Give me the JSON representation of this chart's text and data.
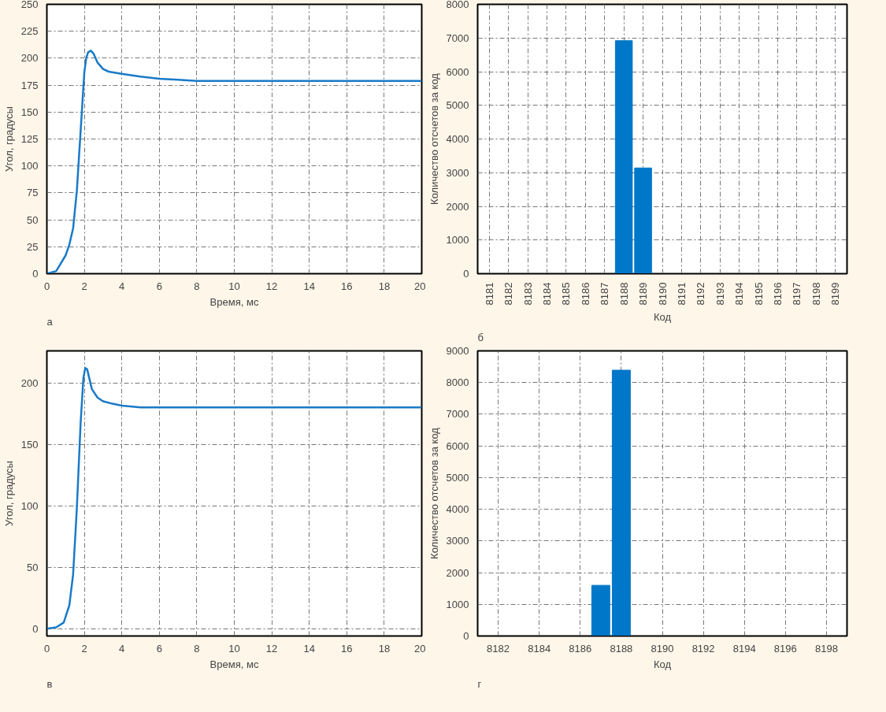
{
  "chart_data": [
    {
      "type": "line",
      "xlabel": "Время, мс",
      "ylabel": "Угол, градусы",
      "annotations": [
        "а"
      ],
      "grid": true,
      "line_style": "solid",
      "xlim": [
        0,
        20
      ],
      "ylim": [
        0,
        250
      ],
      "xticks": [
        0,
        2,
        4,
        6,
        8,
        10,
        12,
        14,
        16,
        18,
        20
      ],
      "yticks": [
        0,
        25,
        50,
        75,
        100,
        125,
        150,
        175,
        200,
        225,
        250
      ],
      "series": [
        {
          "color": "#1a7ac8",
          "x": [
            0,
            0.5,
            1.0,
            1.2,
            1.4,
            1.6,
            1.8,
            2.0,
            2.1,
            2.2,
            2.35,
            2.5,
            2.7,
            3.0,
            3.3,
            4,
            5,
            6,
            7,
            8,
            12,
            20
          ],
          "values": [
            0,
            2.5,
            17,
            27,
            42,
            77,
            132,
            187,
            200,
            205.5,
            207,
            204,
            196,
            190,
            187.5,
            185.5,
            183,
            181,
            180,
            179,
            179,
            179
          ]
        }
      ]
    },
    {
      "type": "bar",
      "xlabel": "Код",
      "ylabel": "Количество отсчетов за код",
      "annotations": [
        "б"
      ],
      "grid": true,
      "ylim": [
        0,
        8000
      ],
      "yticks": [
        0,
        1000,
        2000,
        3000,
        4000,
        5000,
        6000,
        7000,
        8000
      ],
      "categories": [
        "8181",
        "8182",
        "8183",
        "8184",
        "8185",
        "8186",
        "8187",
        "8188",
        "8189",
        "8190",
        "8191",
        "8192",
        "8193",
        "8194",
        "8195",
        "8196",
        "8197",
        "8198",
        "8199"
      ],
      "series": [
        {
          "color": "#0077c8",
          "values": [
            0,
            0,
            0,
            0,
            0,
            0,
            0,
            6920,
            3140,
            0,
            0,
            0,
            0,
            0,
            0,
            0,
            0,
            0,
            0
          ]
        }
      ]
    },
    {
      "type": "line",
      "xlabel": "Время, мс",
      "ylabel": "Угол, градусы",
      "annotations": [
        "в"
      ],
      "grid": true,
      "line_style": "solid",
      "xlim": [
        0,
        20
      ],
      "ylim": [
        -6,
        226
      ],
      "xticks": [
        0,
        2,
        4,
        6,
        8,
        10,
        12,
        14,
        16,
        18,
        20
      ],
      "yticks": [
        0,
        50,
        100,
        150,
        200
      ],
      "series": [
        {
          "color": "#1a7ac8",
          "x": [
            0,
            0.5,
            0.9,
            1.2,
            1.4,
            1.6,
            1.8,
            1.95,
            2.05,
            2.15,
            2.4,
            2.7,
            3.0,
            3.5,
            4,
            5,
            10,
            20
          ],
          "values": [
            0,
            1,
            5,
            19,
            44,
            98,
            167,
            204,
            212,
            211,
            195,
            188,
            185,
            183,
            181.5,
            180,
            180,
            180
          ]
        }
      ]
    },
    {
      "type": "bar",
      "xlabel": "Код",
      "ylabel": "Количество отсчетов за код",
      "annotations": [
        "г"
      ],
      "grid": true,
      "xlim": [
        8181,
        8199
      ],
      "ylim": [
        0,
        9000
      ],
      "xticks": [
        8182,
        8184,
        8186,
        8188,
        8190,
        8192,
        8194,
        8196,
        8198
      ],
      "yticks": [
        0,
        1000,
        2000,
        3000,
        4000,
        5000,
        6000,
        7000,
        8000,
        9000
      ],
      "series": [
        {
          "color": "#0077c8",
          "x": [
            8187,
            8188
          ],
          "values": [
            1600,
            8390
          ]
        }
      ]
    }
  ]
}
